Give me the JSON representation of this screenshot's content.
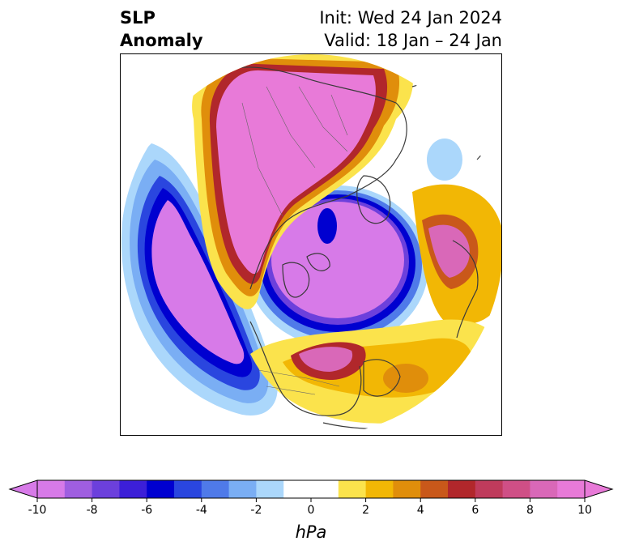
{
  "title": {
    "variable": "SLP",
    "kind": "Anomaly",
    "init": "Init: Wed 24 Jan 2024",
    "valid": "Valid: 18 Jan – 24 Jan"
  },
  "colorbar": {
    "unit": "hPa",
    "tick_labels": [
      "-10",
      "-8",
      "-6",
      "-4",
      "-2",
      "0",
      "2",
      "4",
      "6",
      "8",
      "10"
    ],
    "bins": [
      "#d77ae8",
      "#9f5ee0",
      "#6c40dc",
      "#3c1fd8",
      "#0000d0",
      "#2a46df",
      "#4f7ae9",
      "#7aaef4",
      "#abd7fb",
      "#ffffff",
      "#ffffff",
      "#fbe34c",
      "#f2b705",
      "#e08e0b",
      "#c9581a",
      "#b1272b",
      "#bf3b5c",
      "#cf4f86",
      "#d968b8",
      "#e87ad8"
    ],
    "under_color": "#d77ae8",
    "over_color": "#e87ad8"
  },
  "map": {
    "projection": "north-polar-stereographic",
    "ocean_color": "#ffffff",
    "coast_color": "#3a3a3a"
  }
}
